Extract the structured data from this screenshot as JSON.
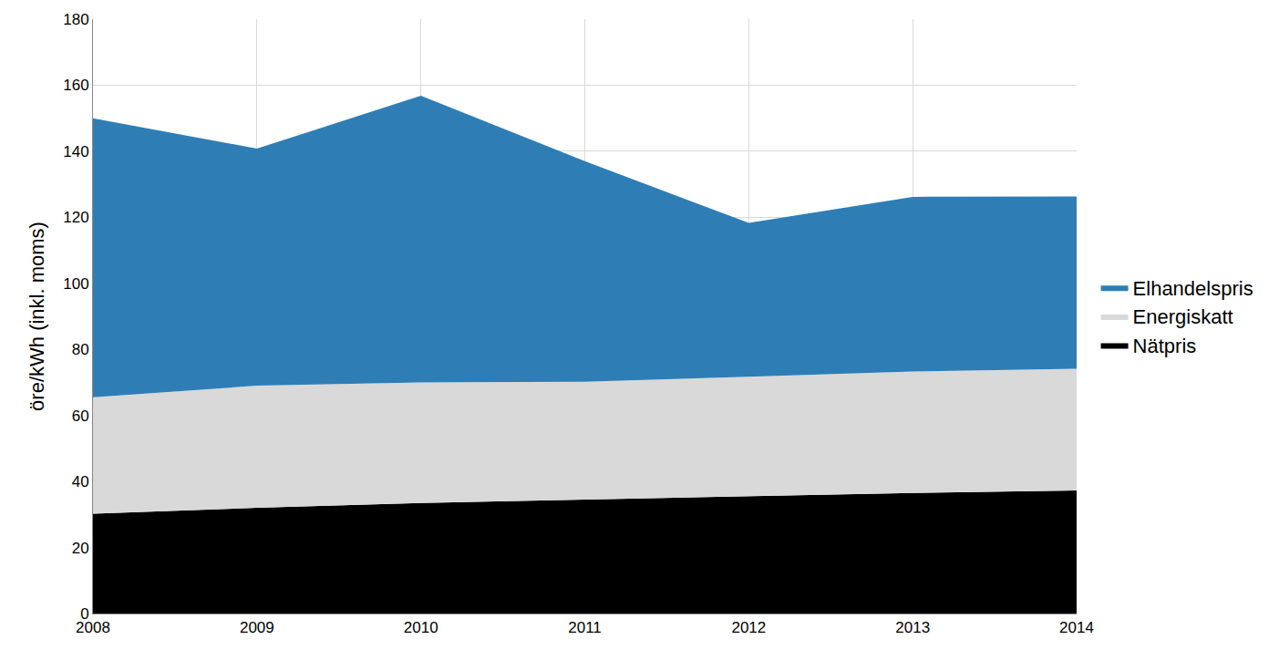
{
  "chart_data": {
    "type": "area",
    "stacked": true,
    "y_label": "öre/kWh (inkl. moms)",
    "x": [
      2008,
      2009,
      2010,
      2011,
      2012,
      2013,
      2014
    ],
    "xlim": [
      2008,
      2014
    ],
    "xticks": [
      2008,
      2009,
      2010,
      2011,
      2012,
      2013,
      2014
    ],
    "ylim": [
      0,
      180
    ],
    "yticks": [
      0,
      20,
      40,
      60,
      80,
      100,
      120,
      140,
      160,
      180
    ],
    "grid": true,
    "legend": "right",
    "series": [
      {
        "name": "Nätpris",
        "color": "#000000",
        "values": [
          30.2,
          32.0,
          33.5,
          34.5,
          35.5,
          36.5,
          37.3
        ]
      },
      {
        "name": "Energiskatt",
        "color": "#d9d9d9",
        "values": [
          35.3,
          37.0,
          36.5,
          35.7,
          36.2,
          36.8,
          36.8
        ]
      },
      {
        "name": "Elhandelspris",
        "color": "#2e7eb5",
        "values": [
          84.5,
          71.8,
          86.8,
          66.8,
          46.6,
          52.9,
          52.2
        ]
      }
    ]
  }
}
